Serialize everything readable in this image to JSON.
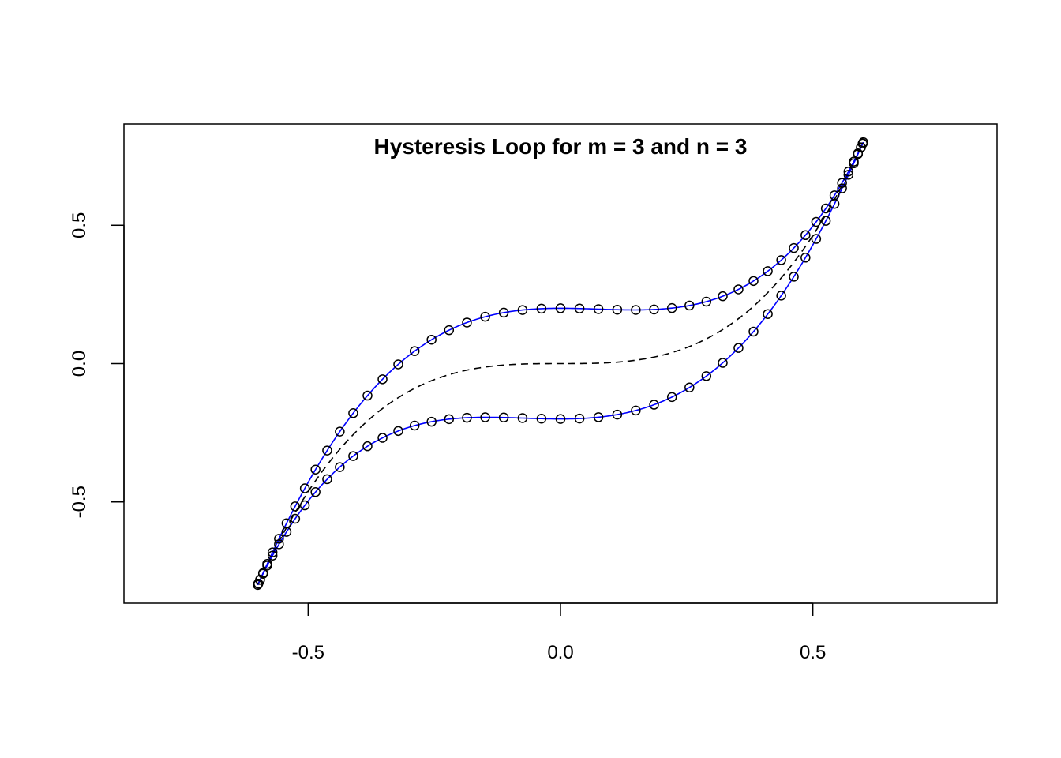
{
  "chart_data": {
    "type": "line",
    "title": "Hysteresis Loop for m = 3 and n = 3",
    "xlabel": "",
    "ylabel": "",
    "xlim": [
      -0.865,
      0.865
    ],
    "ylim": [
      -0.866,
      0.866
    ],
    "x_ticks": [
      -0.5,
      0.0,
      0.5
    ],
    "x_tick_labels": [
      "-0.5",
      "0.0",
      "0.5"
    ],
    "y_ticks": [
      -0.5,
      0.0,
      0.5
    ],
    "y_tick_labels": [
      "-0.5",
      "0.0",
      "0.5"
    ],
    "grid": false,
    "model": {
      "m": 3,
      "n": 3,
      "a": 0.6,
      "b": 0.8,
      "b_y": 0.2,
      "cycle_samples": 100
    },
    "series": [
      {
        "style": "points",
        "marker": "open-circle",
        "color": "#000000"
      },
      {
        "style": "line",
        "color": "#0000ff"
      },
      {
        "style": "dashed-line",
        "color": "#000000"
      }
    ]
  }
}
